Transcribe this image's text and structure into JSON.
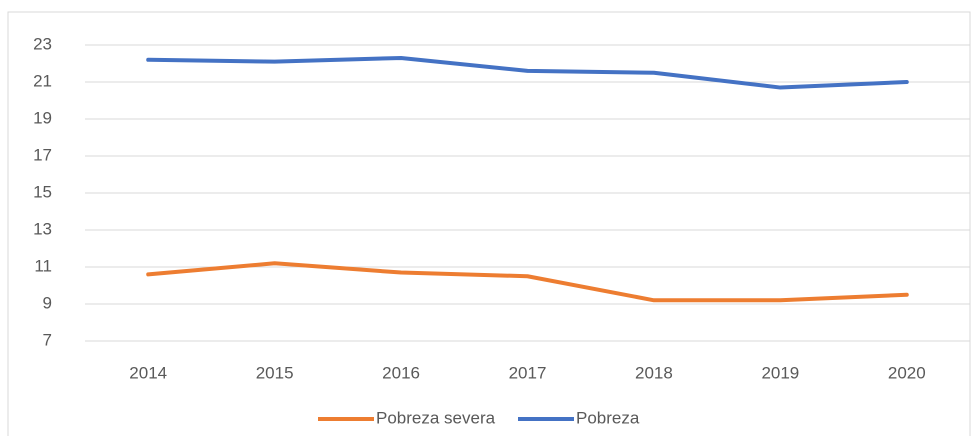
{
  "chart_data": {
    "type": "line",
    "categories": [
      "2014",
      "2015",
      "2016",
      "2017",
      "2018",
      "2019",
      "2020"
    ],
    "series": [
      {
        "name": "Pobreza severa",
        "color": "#ed7d31",
        "values": [
          10.6,
          11.2,
          10.7,
          10.5,
          9.2,
          9.2,
          9.5
        ]
      },
      {
        "name": "Pobreza",
        "color": "#4472c4",
        "values": [
          22.2,
          22.1,
          22.3,
          21.6,
          21.5,
          20.7,
          21.0
        ]
      }
    ],
    "ylim": [
      7,
      23
    ],
    "yticks": [
      7,
      9,
      11,
      13,
      15,
      17,
      19,
      21,
      23
    ],
    "grid": true,
    "legend": "bottom"
  }
}
